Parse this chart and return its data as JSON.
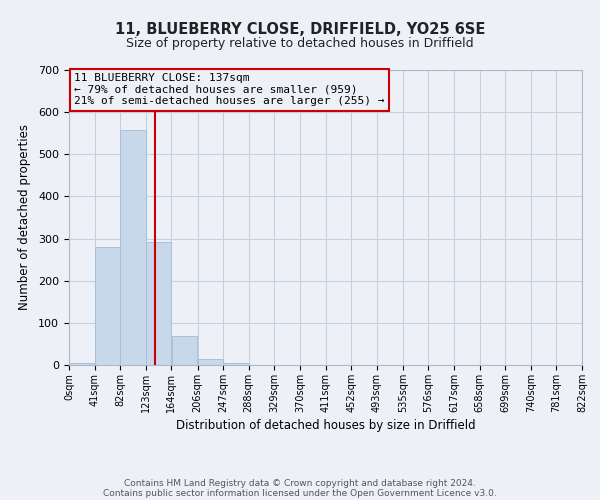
{
  "title1": "11, BLUEBERRY CLOSE, DRIFFIELD, YO25 6SE",
  "title2": "Size of property relative to detached houses in Driffield",
  "xlabel": "Distribution of detached houses by size in Driffield",
  "ylabel": "Number of detached properties",
  "bin_edges": [
    0,
    41,
    82,
    123,
    164,
    206,
    247,
    288,
    329,
    370,
    411,
    452,
    493,
    535,
    576,
    617,
    658,
    699,
    740,
    781,
    822
  ],
  "bar_heights": [
    5,
    280,
    557,
    293,
    68,
    14,
    5,
    0,
    0,
    0,
    0,
    0,
    0,
    0,
    0,
    0,
    0,
    0,
    0,
    0
  ],
  "bar_color": "#c8d8eb",
  "bar_edge_color": "#a8c0da",
  "grid_color": "#c8d0dc",
  "property_line_x": 137,
  "property_line_color": "#cc0000",
  "annotation_box_edge_color": "#cc0000",
  "annotation_lines": [
    "11 BLUEBERRY CLOSE: 137sqm",
    "← 79% of detached houses are smaller (959)",
    "21% of semi-detached houses are larger (255) →"
  ],
  "ylim": [
    0,
    700
  ],
  "yticks": [
    0,
    100,
    200,
    300,
    400,
    500,
    600,
    700
  ],
  "tick_labels": [
    "0sqm",
    "41sqm",
    "82sqm",
    "123sqm",
    "164sqm",
    "206sqm",
    "247sqm",
    "288sqm",
    "329sqm",
    "370sqm",
    "411sqm",
    "452sqm",
    "493sqm",
    "535sqm",
    "576sqm",
    "617sqm",
    "658sqm",
    "699sqm",
    "740sqm",
    "781sqm",
    "822sqm"
  ],
  "footer_line1": "Contains HM Land Registry data © Crown copyright and database right 2024.",
  "footer_line2": "Contains public sector information licensed under the Open Government Licence v3.0.",
  "background_color": "#edf1f7",
  "ax_background_color": "#edf1f7",
  "ann_fontsize": 8.0,
  "title1_fontsize": 10.5,
  "title2_fontsize": 9.0,
  "xlabel_fontsize": 8.5,
  "ylabel_fontsize": 8.5,
  "xtick_fontsize": 7.0,
  "ytick_fontsize": 8.0,
  "footer_fontsize": 6.5
}
